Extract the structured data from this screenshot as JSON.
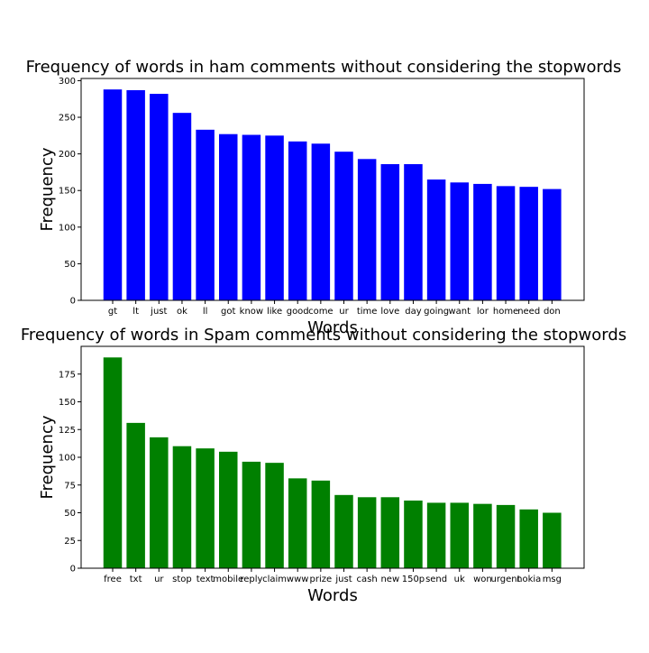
{
  "chart_data": [
    {
      "type": "bar",
      "title": "Frequency of words in ham comments without considering the stopwords",
      "xlabel": "Words",
      "ylabel": "Frequency",
      "categories": [
        "gt",
        "lt",
        "just",
        "ok",
        "ll",
        "got",
        "know",
        "like",
        "good",
        "come",
        "ur",
        "time",
        "love",
        "day",
        "going",
        "want",
        "lor",
        "home",
        "need",
        "don"
      ],
      "values": [
        288,
        287,
        282,
        256,
        233,
        227,
        226,
        225,
        217,
        214,
        203,
        193,
        186,
        186,
        165,
        161,
        159,
        156,
        155,
        152
      ],
      "ylim": [
        0,
        303
      ],
      "yticks": [
        0,
        50,
        100,
        150,
        200,
        250,
        300
      ],
      "color": "#0000ff",
      "grid": false
    },
    {
      "type": "bar",
      "title": "Frequency of words in Spam comments without considering the stopwords",
      "xlabel": "Words",
      "ylabel": "Frequency",
      "categories": [
        "free",
        "txt",
        "ur",
        "stop",
        "text",
        "mobile",
        "reply",
        "claim",
        "www",
        "prize",
        "just",
        "cash",
        "new",
        "150p",
        "send",
        "uk",
        "won",
        "urgent",
        "nokia",
        "msg"
      ],
      "values": [
        190,
        131,
        118,
        110,
        108,
        105,
        96,
        95,
        81,
        79,
        66,
        64,
        64,
        61,
        59,
        59,
        58,
        57,
        53,
        50
      ],
      "ylim": [
        0,
        200
      ],
      "yticks": [
        0,
        25,
        50,
        75,
        100,
        125,
        150,
        175
      ],
      "color": "#008000",
      "grid": false
    }
  ]
}
